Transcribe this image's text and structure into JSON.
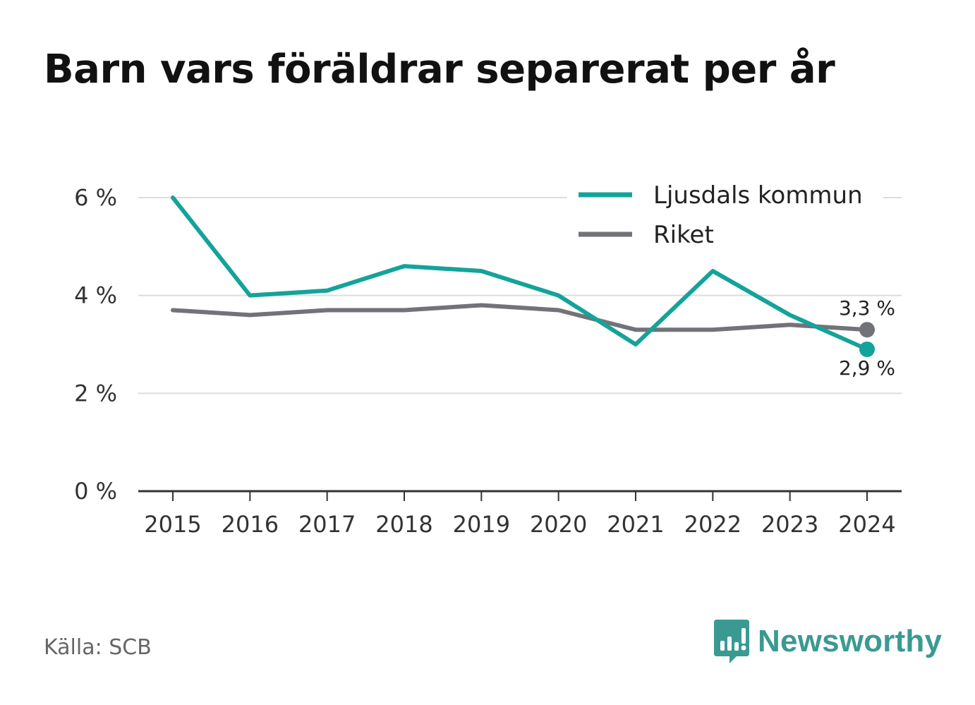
{
  "title": "Barn vars föräldrar separerat per år",
  "source": "Källa: SCB",
  "brand": {
    "name": "Newsworthy",
    "icon": "newsworthy-logo-icon",
    "color": "#3a9a92"
  },
  "chart_data": {
    "type": "line",
    "title": "Barn vars föräldrar separerat per år",
    "xlabel": "",
    "ylabel": "",
    "x": [
      "2015",
      "2016",
      "2017",
      "2018",
      "2019",
      "2020",
      "2021",
      "2022",
      "2023",
      "2024"
    ],
    "ylim": [
      0,
      6
    ],
    "yticks": [
      0,
      2,
      4,
      6
    ],
    "ytick_labels": [
      "0 %",
      "2 %",
      "4 %",
      "6 %"
    ],
    "grid": true,
    "legend_position": "top-right",
    "series": [
      {
        "name": "Ljusdals kommun",
        "color": "#14a39a",
        "values": [
          6.0,
          4.0,
          4.1,
          4.6,
          4.5,
          4.0,
          3.0,
          4.5,
          3.6,
          2.9
        ],
        "end_label": "2,9 %"
      },
      {
        "name": "Riket",
        "color": "#727279",
        "values": [
          3.7,
          3.6,
          3.7,
          3.7,
          3.8,
          3.7,
          3.3,
          3.3,
          3.4,
          3.3
        ],
        "end_label": "3,3 %"
      }
    ]
  }
}
